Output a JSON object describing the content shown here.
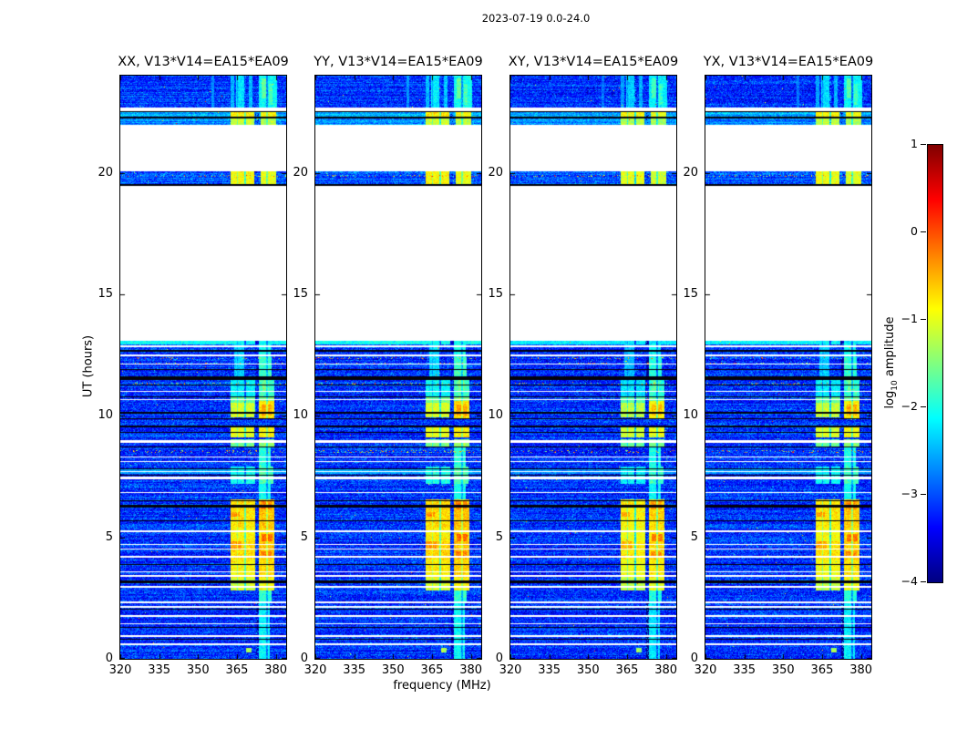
{
  "chart_data": {
    "type": "heatmap",
    "title": "2023-07-19 0.0-24.0",
    "xlabel": "frequency (MHz)",
    "ylabel": "UT (hours)",
    "xlim": [
      320,
      384
    ],
    "ylim": [
      0,
      24
    ],
    "xtick_labels": [
      "320",
      "335",
      "350",
      "365",
      "380"
    ],
    "xtick_values": [
      320,
      335,
      350,
      365,
      380
    ],
    "ytick_labels": [
      "0",
      "5",
      "10",
      "15",
      "20"
    ],
    "ytick_values": [
      0,
      5,
      10,
      15,
      20
    ],
    "panels": [
      {
        "label": "XX, V13*V14=EA15*EA09",
        "pol": "XX"
      },
      {
        "label": "YY, V13*V14=EA15*EA09",
        "pol": "YY"
      },
      {
        "label": "XY, V13*V14=EA15*EA09",
        "pol": "XY"
      },
      {
        "label": "YX, V13*V14=EA15*EA09",
        "pol": "YX"
      }
    ],
    "colorbar": {
      "label_prefix": "log",
      "label_sub": "10",
      "label_suffix": " amplitude",
      "tick_labels": [
        "1",
        "0",
        "−1",
        "−2",
        "−3",
        "−4"
      ],
      "tick_values": [
        1,
        0,
        -1,
        -2,
        -3,
        -4
      ],
      "vmin": -4,
      "vmax": 1,
      "colormap": "jet"
    },
    "features": {
      "bands": [
        {
          "t0": 0.0,
          "t1": 13.08,
          "base": -3.15,
          "sigma": 0.4
        },
        {
          "t0": 19.45,
          "t1": 20.05,
          "base": -3.0,
          "sigma": 0.38
        },
        {
          "t0": 21.96,
          "t1": 22.28,
          "base": -2.7,
          "sigma": 0.3
        },
        {
          "t0": 22.28,
          "t1": 22.54,
          "base": -2.55,
          "sigma": 0.3
        },
        {
          "t0": 22.69,
          "t1": 24.01,
          "base": -3.15,
          "sigma": 0.38
        }
      ],
      "white_lines": [
        {
          "t": 12.86,
          "h": 0.07
        },
        {
          "t": 12.48,
          "h": 0.07
        },
        {
          "t": 12.12,
          "h": 0.05
        },
        {
          "t": 11.0,
          "h": 0.06
        },
        {
          "t": 10.68,
          "h": 0.05
        },
        {
          "t": 8.95,
          "h": 0.1
        },
        {
          "t": 8.3,
          "h": 0.06
        },
        {
          "t": 8.12,
          "h": 0.06
        },
        {
          "t": 7.7,
          "h": 0.05
        },
        {
          "t": 7.45,
          "h": 0.09
        },
        {
          "t": 6.85,
          "h": 0.05
        },
        {
          "t": 5.24,
          "h": 0.06
        },
        {
          "t": 4.7,
          "h": 0.06
        },
        {
          "t": 4.52,
          "h": 0.06
        },
        {
          "t": 4.2,
          "h": 0.05
        },
        {
          "t": 3.58,
          "h": 0.06
        },
        {
          "t": 3.41,
          "h": 0.06
        },
        {
          "t": 2.95,
          "h": 0.07
        },
        {
          "t": 2.33,
          "h": 0.06
        },
        {
          "t": 2.14,
          "h": 0.06
        },
        {
          "t": 1.76,
          "h": 0.07
        },
        {
          "t": 1.45,
          "h": 0.06
        },
        {
          "t": 0.95,
          "h": 0.07
        },
        {
          "t": 0.61,
          "h": 0.06
        }
      ],
      "black_lines": [
        {
          "t": 22.52,
          "h": 0.06
        },
        {
          "t": 22.28,
          "h": 0.07
        },
        {
          "t": 21.94,
          "h": 0.06
        },
        {
          "t": 19.5,
          "h": 0.1
        },
        {
          "t": 12.67,
          "h": 0.05
        },
        {
          "t": 11.9,
          "h": 0.05
        },
        {
          "t": 11.55,
          "h": 0.12
        },
        {
          "t": 11.26,
          "h": 0.05
        },
        {
          "t": 10.78,
          "h": 0.05
        },
        {
          "t": 10.12,
          "h": 0.05
        },
        {
          "t": 9.88,
          "h": 0.05
        },
        {
          "t": 9.56,
          "h": 0.05
        },
        {
          "t": 9.32,
          "h": 0.05
        },
        {
          "t": 8.72,
          "h": 0.05
        },
        {
          "t": 7.82,
          "h": 0.05
        },
        {
          "t": 7.55,
          "h": 0.05
        },
        {
          "t": 6.5,
          "h": 0.05
        },
        {
          "t": 6.28,
          "h": 0.08
        },
        {
          "t": 5.68,
          "h": 0.05
        },
        {
          "t": 3.89,
          "h": 0.05
        },
        {
          "t": 3.17,
          "h": 0.09
        },
        {
          "t": 2.05,
          "h": 0.05
        },
        {
          "t": 1.3,
          "h": 0.05
        },
        {
          "t": 0.8,
          "h": 0.05
        }
      ],
      "hot_regions": [
        {
          "t": [
            22.69,
            24.0
          ],
          "f": [
            355.0,
            356.3
          ],
          "v": -2.7
        },
        {
          "t": [
            22.69,
            24.0
          ],
          "f": [
            362.5,
            364.0
          ],
          "v": -2.5
        },
        {
          "t": [
            22.69,
            24.0
          ],
          "f": [
            364.5,
            368.5
          ],
          "v": -2.25
        },
        {
          "t": [
            22.69,
            24.0
          ],
          "f": [
            369.5,
            371.0
          ],
          "v": -2.45
        },
        {
          "t": [
            22.69,
            24.0
          ],
          "f": [
            373.5,
            380.5
          ],
          "v": -2.1
        },
        {
          "t": [
            23.05,
            23.9
          ],
          "f": [
            374.5,
            376.2
          ],
          "v": -1.65
        },
        {
          "t": [
            22.8,
            23.65
          ],
          "f": [
            377.2,
            378.6
          ],
          "v": -1.8
        },
        {
          "t": [
            22.28,
            22.52
          ],
          "f": [
            362.5,
            371.6
          ],
          "v": -0.8
        },
        {
          "t": [
            22.28,
            22.52
          ],
          "f": [
            374.0,
            380.0
          ],
          "v": -0.9
        },
        {
          "t": [
            21.96,
            22.26
          ],
          "f": [
            362.5,
            371.6
          ],
          "v": -1.15
        },
        {
          "t": [
            21.96,
            22.26
          ],
          "f": [
            374.0,
            380.0
          ],
          "v": -1.25
        },
        {
          "t": [
            19.55,
            20.05
          ],
          "f": [
            362.5,
            371.6
          ],
          "v": -0.9
        },
        {
          "t": [
            19.55,
            20.05
          ],
          "f": [
            374.0,
            380.0
          ],
          "v": -1.0
        },
        {
          "t": [
            12.95,
            13.08
          ],
          "f": [
            320.0,
            384.0
          ],
          "v": -2.1
        },
        {
          "t": [
            12.4,
            12.95
          ],
          "f": [
            364.0,
            368.0
          ],
          "v": -2.35
        },
        {
          "t": [
            12.4,
            12.95
          ],
          "f": [
            373.5,
            378.0
          ],
          "v": -2.05
        },
        {
          "t": [
            11.6,
            12.4
          ],
          "f": [
            372.5,
            378.5
          ],
          "v": -1.85
        },
        {
          "t": [
            11.6,
            12.4
          ],
          "f": [
            364.0,
            368.0
          ],
          "v": -2.35
        },
        {
          "t": [
            10.8,
            11.6
          ],
          "f": [
            362.5,
            372.0
          ],
          "v": -2.15
        },
        {
          "t": [
            10.8,
            11.6
          ],
          "f": [
            373.5,
            379.5
          ],
          "v": -1.85
        },
        {
          "t": [
            11.0,
            11.5
          ],
          "f": [
            375.0,
            377.2
          ],
          "v": -1.55
        },
        {
          "t": [
            10.15,
            10.8
          ],
          "f": [
            362.5,
            372.0
          ],
          "v": -1.6
        },
        {
          "t": [
            10.15,
            10.8
          ],
          "f": [
            373.5,
            379.5
          ],
          "v": -1.5
        },
        {
          "t": [
            9.9,
            10.6
          ],
          "f": [
            373.5,
            379.6
          ],
          "v": -0.75
        },
        {
          "t": [
            10.0,
            10.45
          ],
          "f": [
            374.5,
            378.2
          ],
          "v": -0.45
        },
        {
          "t": [
            9.95,
            10.55
          ],
          "f": [
            362.5,
            371.6
          ],
          "v": -1.1
        },
        {
          "t": [
            9.1,
            9.55
          ],
          "f": [
            362.5,
            371.6
          ],
          "v": -1.0
        },
        {
          "t": [
            9.1,
            9.55
          ],
          "f": [
            373.5,
            379.6
          ],
          "v": -0.85
        },
        {
          "t": [
            8.75,
            9.05
          ],
          "f": [
            362.5,
            371.6
          ],
          "v": -1.55
        },
        {
          "t": [
            8.75,
            9.05
          ],
          "f": [
            373.5,
            379.6
          ],
          "v": -1.4
        },
        {
          "t": [
            7.9,
            8.75
          ],
          "f": [
            373.5,
            378.0
          ],
          "v": -1.95
        },
        {
          "t": [
            7.62,
            7.8
          ],
          "f": [
            320.0,
            384.0
          ],
          "v": -2.6
        },
        {
          "t": [
            7.2,
            7.9
          ],
          "f": [
            362.5,
            372.0
          ],
          "v": -2.05
        },
        {
          "t": [
            7.2,
            7.9
          ],
          "f": [
            373.5,
            379.0
          ],
          "v": -1.75
        },
        {
          "t": [
            6.55,
            7.2
          ],
          "f": [
            373.5,
            378.0
          ],
          "v": -2.05
        },
        {
          "t": [
            6.1,
            6.55
          ],
          "f": [
            362.5,
            372.0
          ],
          "v": -0.7
        },
        {
          "t": [
            6.1,
            6.55
          ],
          "f": [
            373.5,
            379.6
          ],
          "v": -0.6
        },
        {
          "t": [
            6.15,
            6.5
          ],
          "f": [
            374.0,
            378.2
          ],
          "v": -0.3
        },
        {
          "t": [
            5.4,
            6.1
          ],
          "f": [
            362.5,
            372.0
          ],
          "v": -0.75
        },
        {
          "t": [
            5.85,
            6.05
          ],
          "f": [
            363.0,
            366.2
          ],
          "v": -0.35
        },
        {
          "t": [
            5.4,
            6.1
          ],
          "f": [
            373.5,
            379.6
          ],
          "v": -0.6
        },
        {
          "t": [
            4.85,
            5.4
          ],
          "f": [
            362.5,
            372.0
          ],
          "v": -0.85
        },
        {
          "t": [
            4.85,
            5.4
          ],
          "f": [
            373.5,
            379.6
          ],
          "v": -0.7
        },
        {
          "t": [
            4.85,
            5.12
          ],
          "f": [
            374.5,
            378.6
          ],
          "v": -0.15
        },
        {
          "t": [
            4.1,
            4.85
          ],
          "f": [
            362.5,
            372.0
          ],
          "v": -0.7
        },
        {
          "t": [
            4.5,
            4.82
          ],
          "f": [
            363.0,
            366.6
          ],
          "v": -0.4
        },
        {
          "t": [
            4.1,
            4.85
          ],
          "f": [
            373.5,
            379.6
          ],
          "v": -0.6
        },
        {
          "t": [
            4.18,
            4.42
          ],
          "f": [
            374.0,
            378.2
          ],
          "v": -0.25
        },
        {
          "t": [
            3.35,
            4.1
          ],
          "f": [
            362.5,
            372.0
          ],
          "v": -0.85
        },
        {
          "t": [
            3.35,
            4.1
          ],
          "f": [
            373.5,
            379.6
          ],
          "v": -0.7
        },
        {
          "t": [
            2.8,
            3.35
          ],
          "f": [
            362.5,
            372.0
          ],
          "v": -1.1
        },
        {
          "t": [
            2.8,
            3.35
          ],
          "f": [
            373.5,
            379.6
          ],
          "v": -0.9
        },
        {
          "t": [
            2.3,
            2.8
          ],
          "f": [
            373.0,
            378.2
          ],
          "v": -1.9
        },
        {
          "t": [
            0.0,
            2.3
          ],
          "f": [
            372.5,
            377.6
          ],
          "v": -2.15
        },
        {
          "t": [
            0.25,
            0.45
          ],
          "f": [
            368.4,
            370.8
          ],
          "v": -1.25
        }
      ],
      "separators": [
        {
          "f": [
            372.1,
            373.4
          ],
          "drop": 1.5
        },
        {
          "f": [
            367.9,
            368.5
          ],
          "drop": 0.9
        },
        {
          "f": [
            376.3,
            376.9
          ],
          "drop": 0.6
        },
        {
          "f": [
            365.0,
            365.4
          ],
          "drop": 0.45
        }
      ],
      "speckle_rows": [
        {
          "t": 19.88,
          "p": 0.12
        },
        {
          "t": 12.38,
          "p": 0.1
        },
        {
          "t": 12.15,
          "p": 0.08
        },
        {
          "t": 11.32,
          "p": 0.1
        },
        {
          "t": 8.52,
          "p": 0.12
        }
      ]
    }
  }
}
